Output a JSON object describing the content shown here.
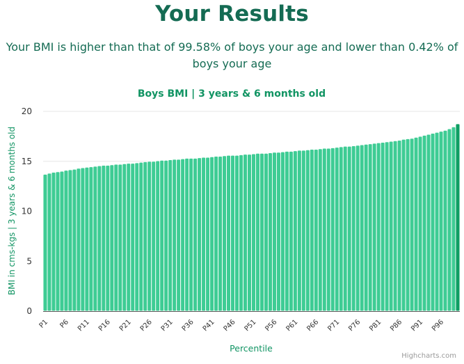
{
  "page": {
    "title": "Your Results",
    "summary": "Your BMI is higher than that of 99.58% of boys your age and lower than 0.42% of boys your age"
  },
  "chart_data": {
    "type": "bar",
    "title": "Boys BMI | 3 years & 6 months old",
    "xlabel": "Percentile",
    "ylabel": "BMI in cms-kgs | 3 years & 6 months old",
    "ylim": [
      0,
      20
    ],
    "y_ticks": [
      0,
      5,
      10,
      15,
      20
    ],
    "grid": true,
    "legend": "none",
    "credits": "Highcharts.com",
    "x_tick_labels": [
      "P1",
      "P6",
      "P11",
      "P16",
      "P21",
      "P26",
      "P31",
      "P36",
      "P41",
      "P46",
      "P51",
      "P56",
      "P61",
      "P66",
      "P71",
      "P76",
      "P81",
      "P86",
      "P91",
      "P96"
    ],
    "categories": [
      "P1",
      "P2",
      "P3",
      "P4",
      "P5",
      "P6",
      "P7",
      "P8",
      "P9",
      "P10",
      "P11",
      "P12",
      "P13",
      "P14",
      "P15",
      "P16",
      "P17",
      "P18",
      "P19",
      "P20",
      "P21",
      "P22",
      "P23",
      "P24",
      "P25",
      "P26",
      "P27",
      "P28",
      "P29",
      "P30",
      "P31",
      "P32",
      "P33",
      "P34",
      "P35",
      "P36",
      "P37",
      "P38",
      "P39",
      "P40",
      "P41",
      "P42",
      "P43",
      "P44",
      "P45",
      "P46",
      "P47",
      "P48",
      "P49",
      "P50",
      "P51",
      "P52",
      "P53",
      "P54",
      "P55",
      "P56",
      "P57",
      "P58",
      "P59",
      "P60",
      "P61",
      "P62",
      "P63",
      "P64",
      "P65",
      "P66",
      "P67",
      "P68",
      "P69",
      "P70",
      "P71",
      "P72",
      "P73",
      "P74",
      "P75",
      "P76",
      "P77",
      "P78",
      "P79",
      "P80",
      "P81",
      "P82",
      "P83",
      "P84",
      "P85",
      "P86",
      "P87",
      "P88",
      "P89",
      "P90",
      "P91",
      "P92",
      "P93",
      "P94",
      "P95",
      "P96",
      "P97",
      "P98",
      "P99",
      "P100"
    ],
    "values": [
      13.7,
      13.8,
      13.9,
      13.95,
      14.0,
      14.1,
      14.15,
      14.2,
      14.3,
      14.35,
      14.4,
      14.45,
      14.5,
      14.55,
      14.6,
      14.6,
      14.65,
      14.7,
      14.7,
      14.75,
      14.8,
      14.8,
      14.85,
      14.9,
      14.95,
      15.0,
      15.0,
      15.05,
      15.1,
      15.1,
      15.15,
      15.2,
      15.2,
      15.25,
      15.3,
      15.3,
      15.3,
      15.35,
      15.4,
      15.4,
      15.45,
      15.5,
      15.5,
      15.55,
      15.6,
      15.6,
      15.6,
      15.65,
      15.7,
      15.7,
      15.75,
      15.8,
      15.8,
      15.8,
      15.85,
      15.9,
      15.9,
      15.95,
      16.0,
      16.0,
      16.05,
      16.1,
      16.1,
      16.15,
      16.2,
      16.2,
      16.25,
      16.3,
      16.3,
      16.35,
      16.4,
      16.45,
      16.5,
      16.5,
      16.55,
      16.6,
      16.65,
      16.7,
      16.75,
      16.8,
      16.85,
      16.9,
      16.95,
      17.0,
      17.05,
      17.1,
      17.2,
      17.25,
      17.3,
      17.4,
      17.5,
      17.6,
      17.7,
      17.8,
      17.9,
      18.0,
      18.1,
      18.25,
      18.45,
      18.75
    ],
    "highlight_index": 99,
    "colors": {
      "bar": "#3ecc94",
      "highlight_bar": "#0e9e63",
      "bar_stroke": "#ffffff",
      "axis_title": "#119463",
      "chart_title": "#119463",
      "gridline": "#e6e6e6",
      "axis_line": "#5b5b5b",
      "tick_label": "#333333",
      "credits": "#999999"
    }
  }
}
